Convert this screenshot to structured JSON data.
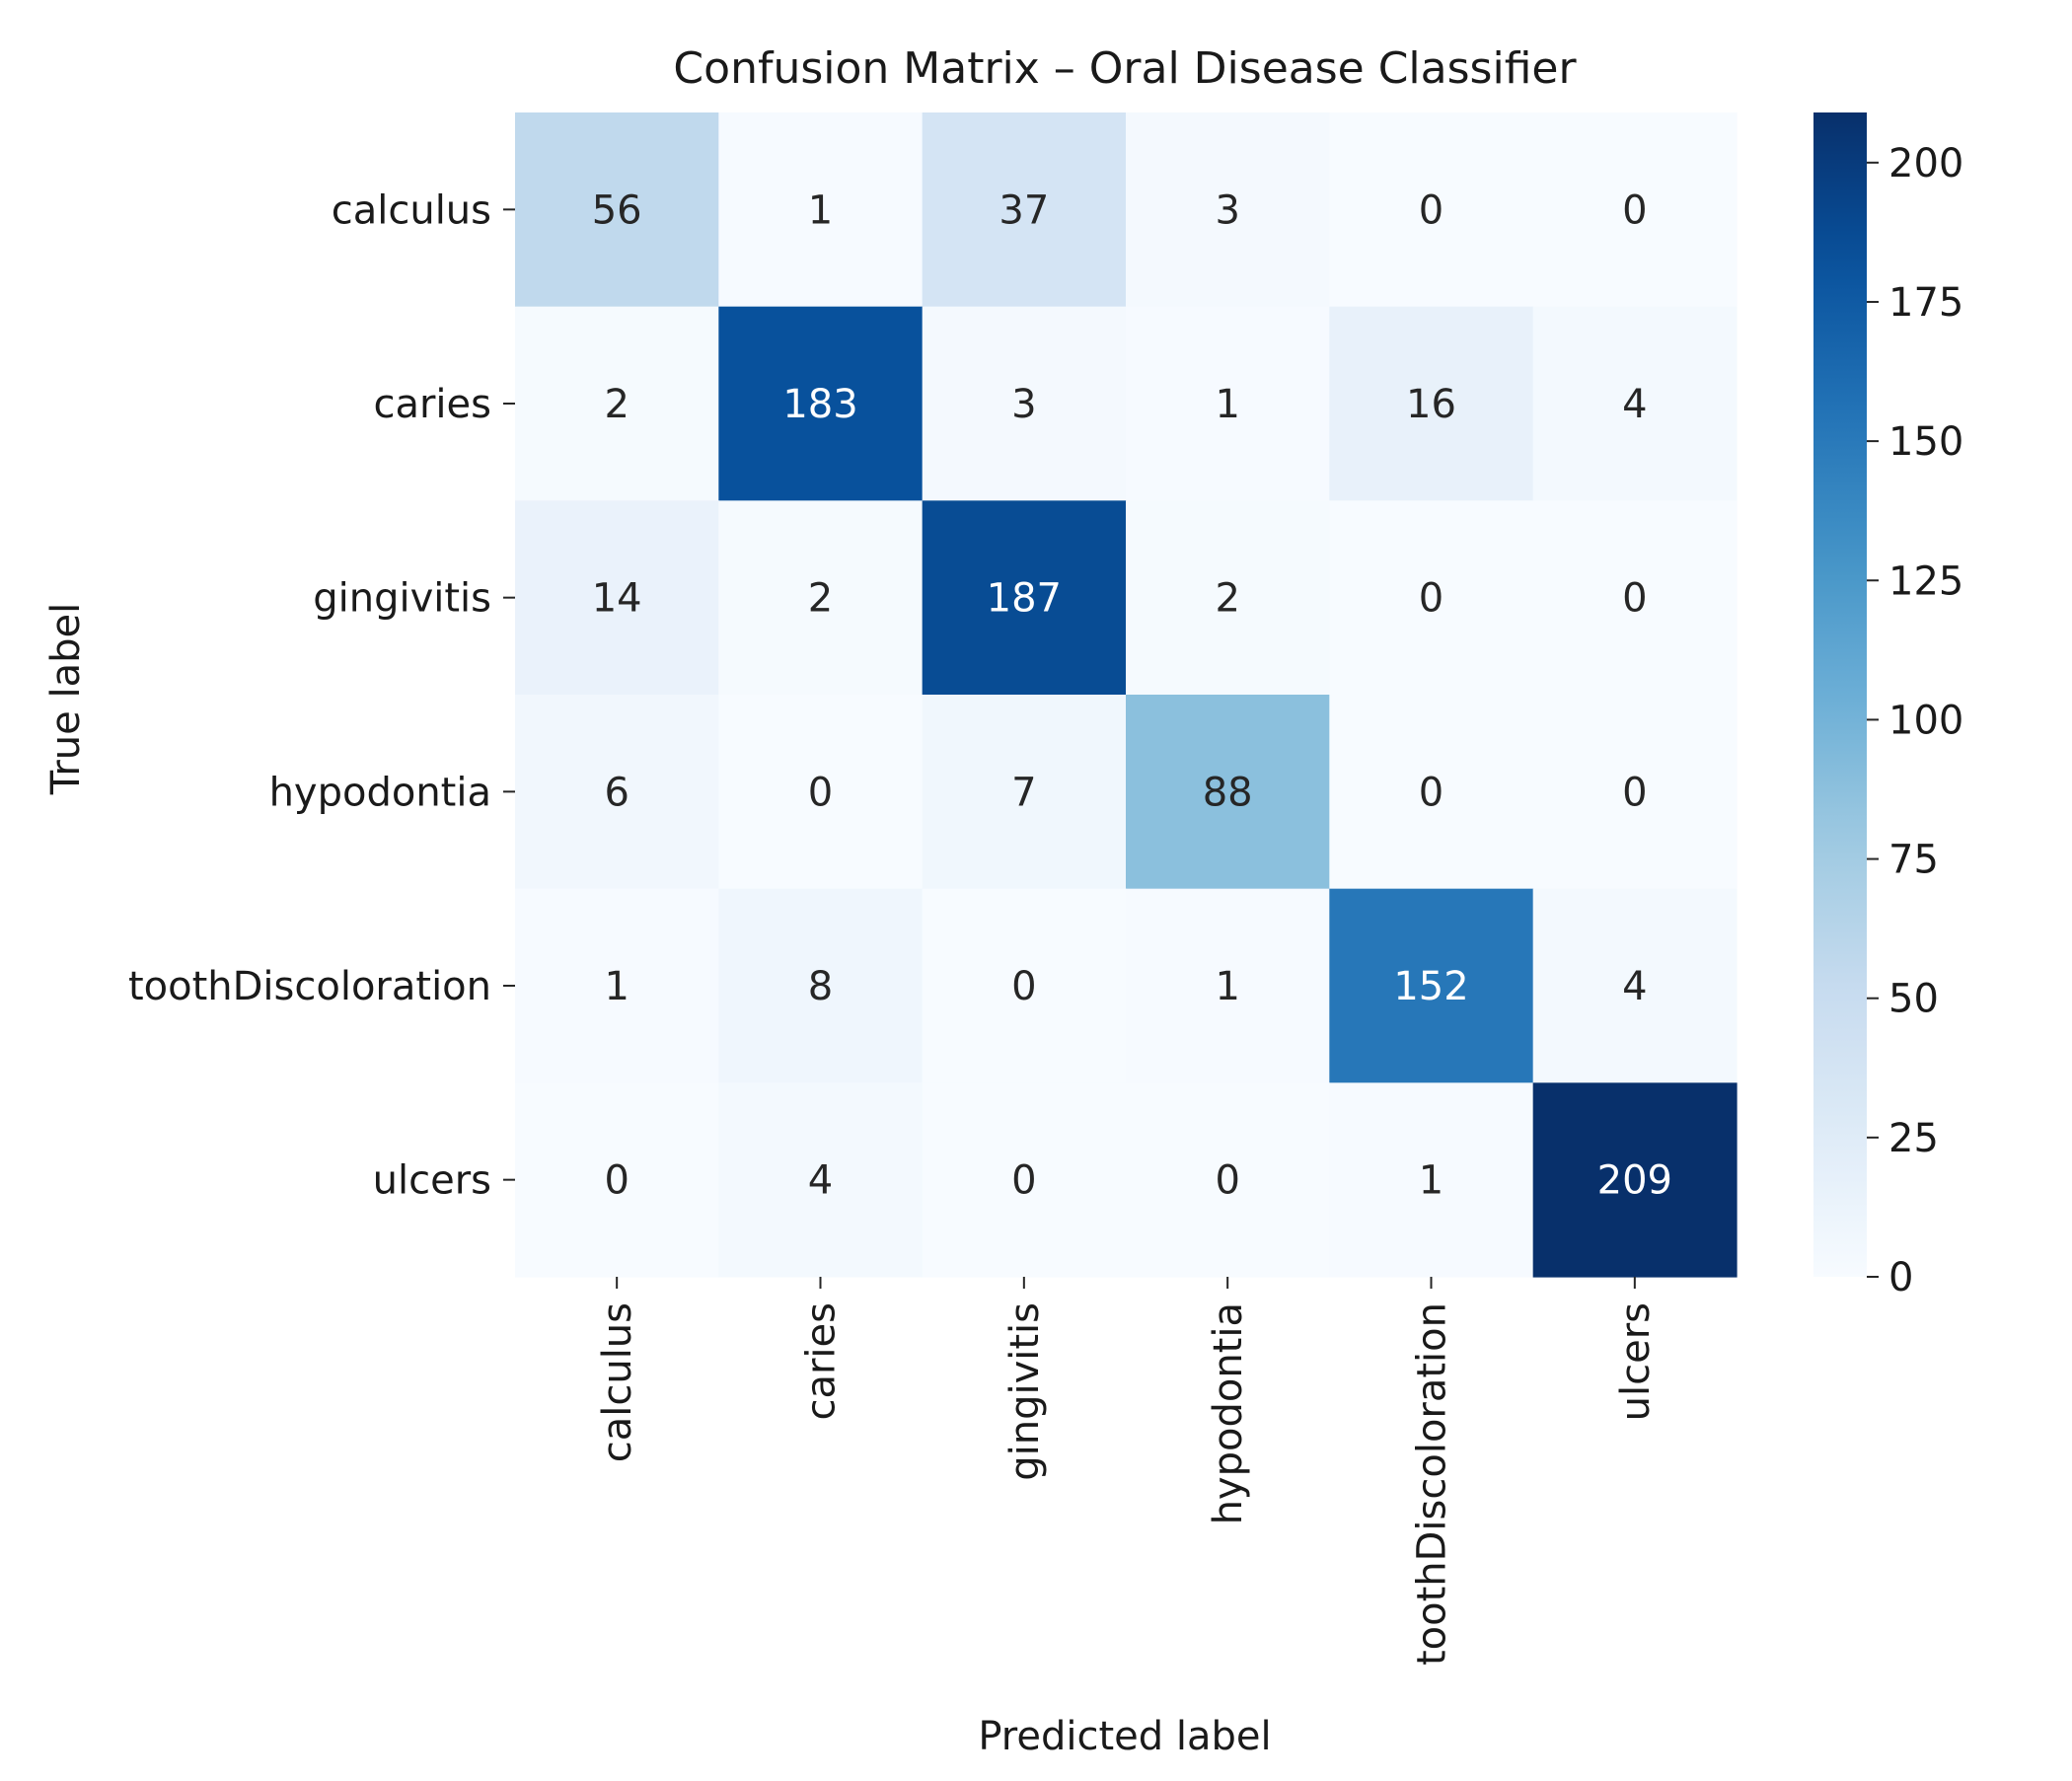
{
  "chart_data": {
    "type": "heatmap",
    "title": "Confusion Matrix – Oral Disease Classifier",
    "xlabel": "Predicted label",
    "ylabel": "True label",
    "x_categories": [
      "calculus",
      "caries",
      "gingivitis",
      "hypodontia",
      "toothDiscoloration",
      "ulcers"
    ],
    "y_categories": [
      "calculus",
      "caries",
      "gingivitis",
      "hypodontia",
      "toothDiscoloration",
      "ulcers"
    ],
    "values": [
      [
        56,
        1,
        37,
        3,
        0,
        0
      ],
      [
        2,
        183,
        3,
        1,
        16,
        4
      ],
      [
        14,
        2,
        187,
        2,
        0,
        0
      ],
      [
        6,
        0,
        7,
        88,
        0,
        0
      ],
      [
        1,
        8,
        0,
        1,
        152,
        4
      ],
      [
        0,
        4,
        0,
        0,
        1,
        209
      ]
    ],
    "colorbar": {
      "colormap": "Blues",
      "range": [
        0,
        209
      ],
      "ticks": [
        0,
        25,
        50,
        75,
        100,
        125,
        150,
        175,
        200
      ]
    },
    "grid": false,
    "legend": "none"
  }
}
